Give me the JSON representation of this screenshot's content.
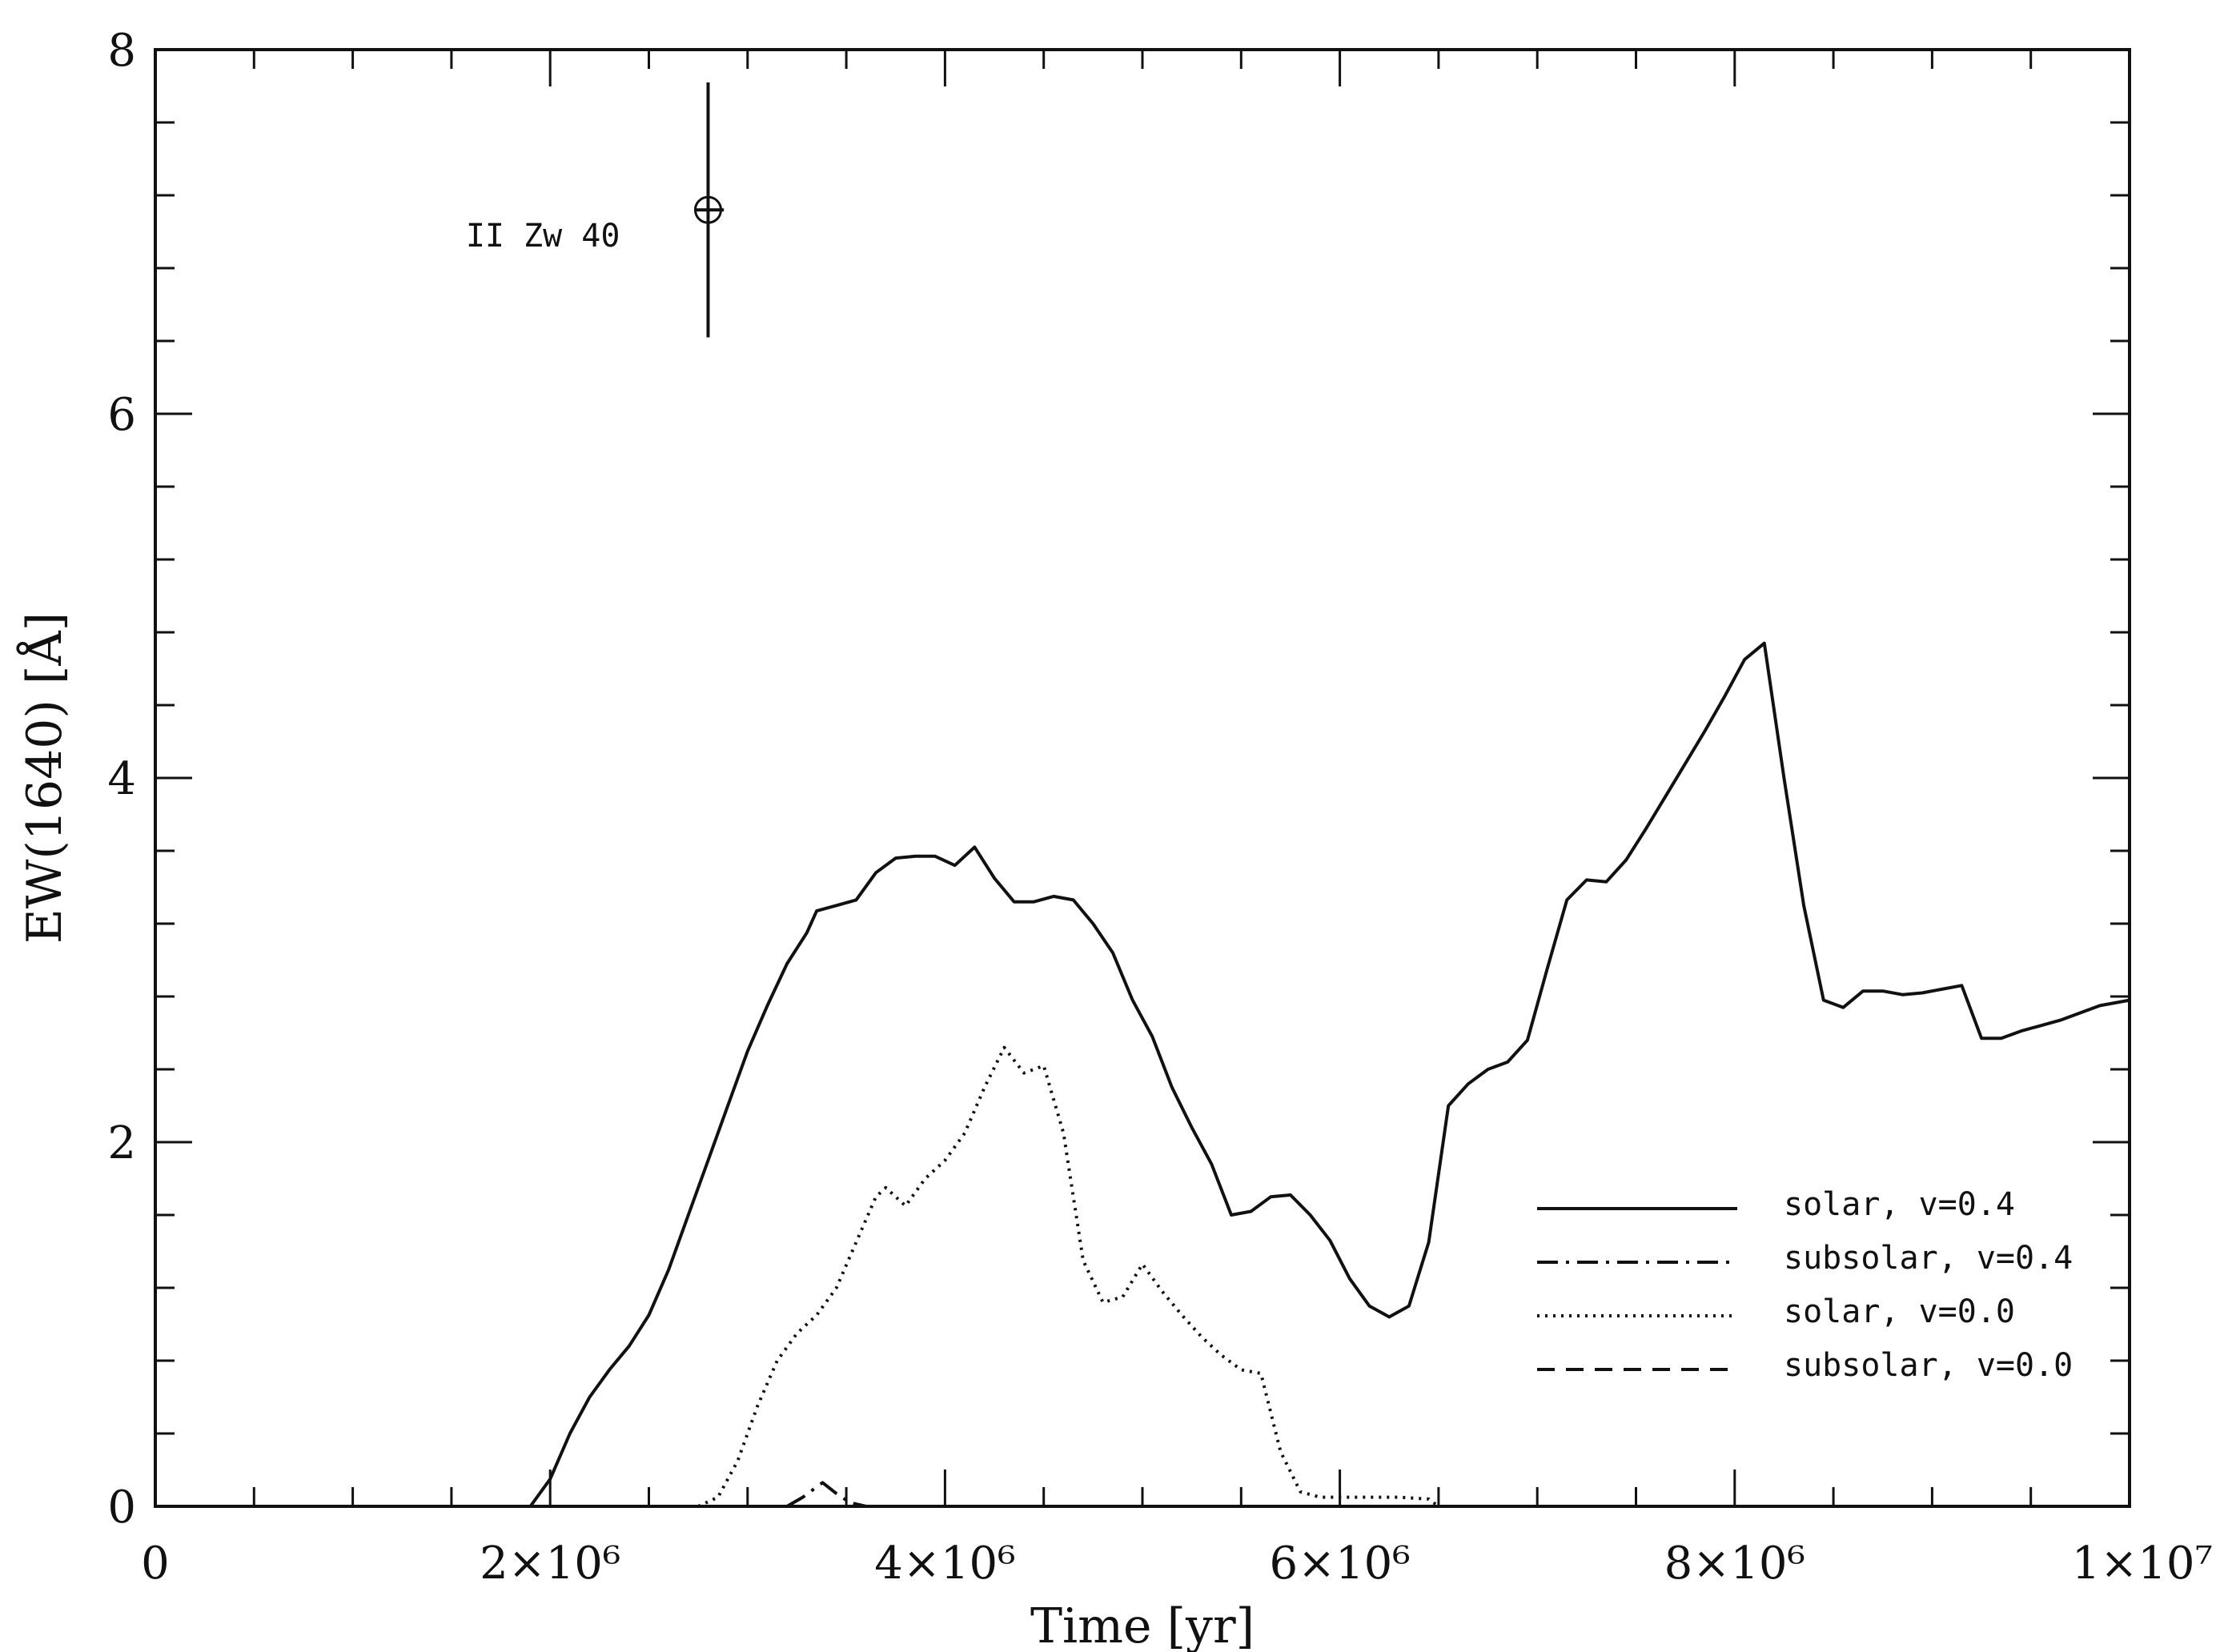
{
  "chart_data": {
    "type": "line",
    "xlabel": "Time [yr]",
    "ylabel": "EW(1640) [Å]",
    "xlim": [
      0,
      10000000
    ],
    "ylim": [
      0,
      8
    ],
    "grid": false,
    "legend_position": "bottom-right",
    "x_ticks": [
      {
        "value": 0,
        "label": "0"
      },
      {
        "value": 2000000,
        "label": "2×10⁶"
      },
      {
        "value": 4000000,
        "label": "4×10⁶"
      },
      {
        "value": 6000000,
        "label": "6×10⁶"
      },
      {
        "value": 8000000,
        "label": "8×10⁶"
      },
      {
        "value": 10000000,
        "label": "1×10⁷"
      }
    ],
    "x_minor_step": 500000,
    "y_ticks": [
      {
        "value": 0,
        "label": "0"
      },
      {
        "value": 2,
        "label": "2"
      },
      {
        "value": 4,
        "label": "4"
      },
      {
        "value": 6,
        "label": "6"
      },
      {
        "value": 8,
        "label": "8"
      }
    ],
    "y_minor_step": 0.4,
    "series": [
      {
        "name": "solar, v=0.4",
        "style": "solid",
        "points": [
          [
            1900000,
            0
          ],
          [
            2000000,
            0.15
          ],
          [
            2100000,
            0.4
          ],
          [
            2200000,
            0.6
          ],
          [
            2300000,
            0.75
          ],
          [
            2400000,
            0.88
          ],
          [
            2500000,
            1.05
          ],
          [
            2600000,
            1.3
          ],
          [
            2700000,
            1.6
          ],
          [
            2800000,
            1.9
          ],
          [
            2900000,
            2.2
          ],
          [
            3000000,
            2.5
          ],
          [
            3100000,
            2.75
          ],
          [
            3200000,
            2.98
          ],
          [
            3300000,
            3.15
          ],
          [
            3350000,
            3.27
          ],
          [
            3450000,
            3.3
          ],
          [
            3550000,
            3.33
          ],
          [
            3650000,
            3.48
          ],
          [
            3750000,
            3.56
          ],
          [
            3850000,
            3.57
          ],
          [
            3950000,
            3.57
          ],
          [
            4050000,
            3.52
          ],
          [
            4150000,
            3.62
          ],
          [
            4250000,
            3.45
          ],
          [
            4350000,
            3.32
          ],
          [
            4450000,
            3.32
          ],
          [
            4550000,
            3.35
          ],
          [
            4650000,
            3.33
          ],
          [
            4750000,
            3.2
          ],
          [
            4850000,
            3.04
          ],
          [
            4950000,
            2.78
          ],
          [
            5050000,
            2.58
          ],
          [
            5150000,
            2.3
          ],
          [
            5250000,
            2.08
          ],
          [
            5350000,
            1.88
          ],
          [
            5450000,
            1.6
          ],
          [
            5550000,
            1.62
          ],
          [
            5650000,
            1.7
          ],
          [
            5750000,
            1.71
          ],
          [
            5850000,
            1.6
          ],
          [
            5950000,
            1.46
          ],
          [
            6050000,
            1.25
          ],
          [
            6150000,
            1.1
          ],
          [
            6250000,
            1.04
          ],
          [
            6350000,
            1.1
          ],
          [
            6450000,
            1.45
          ],
          [
            6550000,
            2.2
          ],
          [
            6650000,
            2.32
          ],
          [
            6750000,
            2.4
          ],
          [
            6850000,
            2.44
          ],
          [
            6950000,
            2.56
          ],
          [
            7050000,
            2.95
          ],
          [
            7150000,
            3.33
          ],
          [
            7250000,
            3.44
          ],
          [
            7350000,
            3.43
          ],
          [
            7450000,
            3.55
          ],
          [
            7550000,
            3.72
          ],
          [
            7650000,
            3.9
          ],
          [
            7750000,
            4.08
          ],
          [
            7850000,
            4.26
          ],
          [
            7950000,
            4.45
          ],
          [
            8050000,
            4.65
          ],
          [
            8150000,
            4.74
          ],
          [
            8250000,
            4.0
          ],
          [
            8350000,
            3.3
          ],
          [
            8450000,
            2.78
          ],
          [
            8550000,
            2.74
          ],
          [
            8650000,
            2.83
          ],
          [
            8750000,
            2.83
          ],
          [
            8850000,
            2.81
          ],
          [
            8950000,
            2.82
          ],
          [
            9050000,
            2.84
          ],
          [
            9150000,
            2.86
          ],
          [
            9250000,
            2.57
          ],
          [
            9350000,
            2.57
          ],
          [
            9450000,
            2.61
          ],
          [
            9550000,
            2.64
          ],
          [
            9650000,
            2.67
          ],
          [
            9750000,
            2.71
          ],
          [
            9850000,
            2.75
          ],
          [
            10000000,
            2.78
          ]
        ]
      },
      {
        "name": "subsolar, v=0.4",
        "style": "dashdot",
        "points": [
          [
            3200000,
            0
          ],
          [
            3280000,
            0.05
          ],
          [
            3380000,
            0.13
          ],
          [
            3450000,
            0.07
          ],
          [
            3520000,
            0.02
          ],
          [
            3600000,
            0
          ]
        ]
      },
      {
        "name": "solar, v=0.0",
        "style": "dotted",
        "points": [
          [
            2750000,
            0
          ],
          [
            2850000,
            0.05
          ],
          [
            2950000,
            0.25
          ],
          [
            3050000,
            0.55
          ],
          [
            3150000,
            0.8
          ],
          [
            3250000,
            0.95
          ],
          [
            3350000,
            1.05
          ],
          [
            3450000,
            1.2
          ],
          [
            3550000,
            1.45
          ],
          [
            3650000,
            1.7
          ],
          [
            3700000,
            1.75
          ],
          [
            3800000,
            1.65
          ],
          [
            3900000,
            1.8
          ],
          [
            4000000,
            1.9
          ],
          [
            4100000,
            2.05
          ],
          [
            4200000,
            2.3
          ],
          [
            4300000,
            2.52
          ],
          [
            4400000,
            2.38
          ],
          [
            4500000,
            2.42
          ],
          [
            4600000,
            2.05
          ],
          [
            4700000,
            1.35
          ],
          [
            4800000,
            1.12
          ],
          [
            4900000,
            1.15
          ],
          [
            5000000,
            1.33
          ],
          [
            5100000,
            1.18
          ],
          [
            5200000,
            1.05
          ],
          [
            5300000,
            0.93
          ],
          [
            5400000,
            0.83
          ],
          [
            5500000,
            0.75
          ],
          [
            5600000,
            0.73
          ],
          [
            5700000,
            0.3
          ],
          [
            5800000,
            0.08
          ],
          [
            5900000,
            0.05
          ],
          [
            6100000,
            0.05
          ],
          [
            6300000,
            0.05
          ],
          [
            6450000,
            0.04
          ],
          [
            6500000,
            0
          ]
        ]
      },
      {
        "name": "subsolar, v=0.0",
        "style": "dashed",
        "points": []
      }
    ],
    "annotations": [
      {
        "label": "II Zw 40",
        "x": 2800000,
        "y": 7.12,
        "y_err_low": 6.42,
        "y_err_high": 7.82,
        "x_err_low": 2730000,
        "x_err_high": 2880000
      }
    ]
  }
}
